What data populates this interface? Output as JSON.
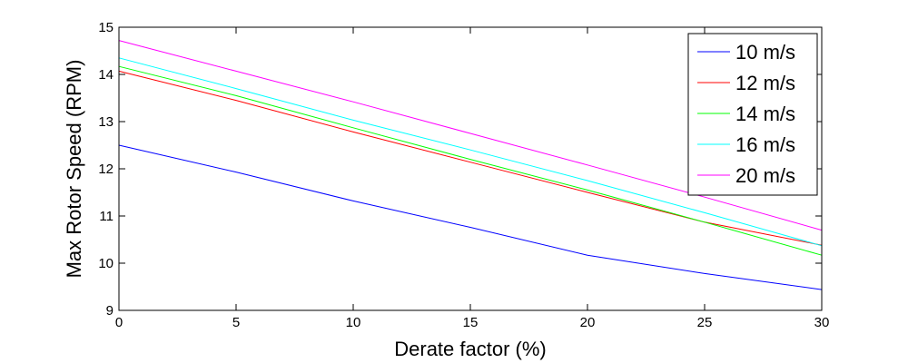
{
  "chart_data": {
    "type": "line",
    "title": "",
    "xlabel": "Derate factor (%)",
    "ylabel": "Max Rotor Speed (RPM)",
    "xlim": [
      0,
      30
    ],
    "ylim": [
      9,
      15
    ],
    "xticks": [
      0,
      5,
      10,
      15,
      20,
      25,
      30
    ],
    "yticks": [
      9,
      10,
      11,
      12,
      13,
      14,
      15
    ],
    "grid": false,
    "legend_position": "top-right",
    "x": [
      0,
      5,
      10,
      15,
      20,
      25,
      30
    ],
    "series": [
      {
        "name": "10 m/s",
        "color": "#0000ff",
        "values": [
          12.5,
          11.93,
          11.32,
          10.76,
          10.17,
          9.78,
          9.44
        ]
      },
      {
        "name": "12 m/s",
        "color": "#ff0000",
        "values": [
          14.07,
          13.45,
          12.78,
          12.14,
          11.5,
          10.87,
          10.38
        ]
      },
      {
        "name": "14 m/s",
        "color": "#00ff00",
        "values": [
          14.17,
          13.55,
          12.87,
          12.2,
          11.55,
          10.87,
          10.17
        ]
      },
      {
        "name": "16 m/s",
        "color": "#00ffff",
        "values": [
          14.35,
          13.7,
          13.03,
          12.4,
          11.75,
          11.07,
          10.37
        ]
      },
      {
        "name": "20 m/s",
        "color": "#ff00ff",
        "values": [
          14.72,
          14.07,
          13.42,
          12.75,
          12.08,
          11.4,
          10.7
        ]
      }
    ]
  }
}
